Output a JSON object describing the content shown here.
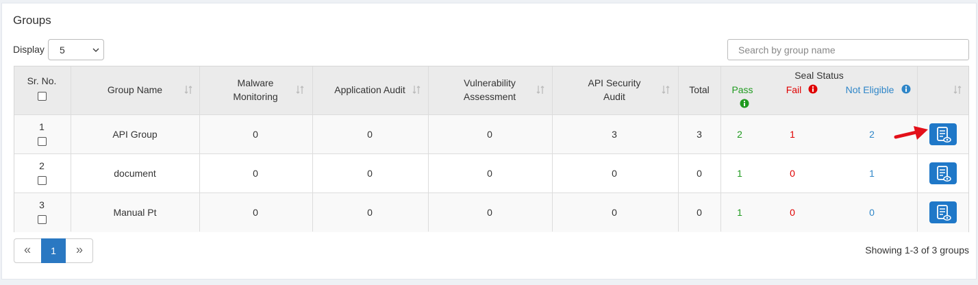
{
  "title": "Groups",
  "display": {
    "label": "Display",
    "value": "5"
  },
  "search": {
    "placeholder": "Search by group name"
  },
  "table": {
    "headers": [
      "Sr. No.",
      "Group Name",
      "Malware Monitoring",
      "Application Audit",
      "Vulnerability Assessment",
      "API Security Audit",
      "Total"
    ],
    "seal_status": {
      "title": "Seal Status",
      "pass": "Pass",
      "fail": "Fail",
      "not_eligible": "Not Eligible"
    },
    "rows": [
      [
        1,
        "API Group",
        0,
        0,
        0,
        3,
        3,
        2,
        1,
        2
      ],
      [
        2,
        "document",
        0,
        0,
        0,
        0,
        0,
        1,
        0,
        1
      ],
      [
        3,
        "Manual Pt",
        0,
        0,
        0,
        0,
        0,
        1,
        0,
        0
      ]
    ]
  },
  "pagination": {
    "prev": "«",
    "page": "1",
    "next": "»"
  },
  "summary": "Showing 1-3 of 3 groups"
}
